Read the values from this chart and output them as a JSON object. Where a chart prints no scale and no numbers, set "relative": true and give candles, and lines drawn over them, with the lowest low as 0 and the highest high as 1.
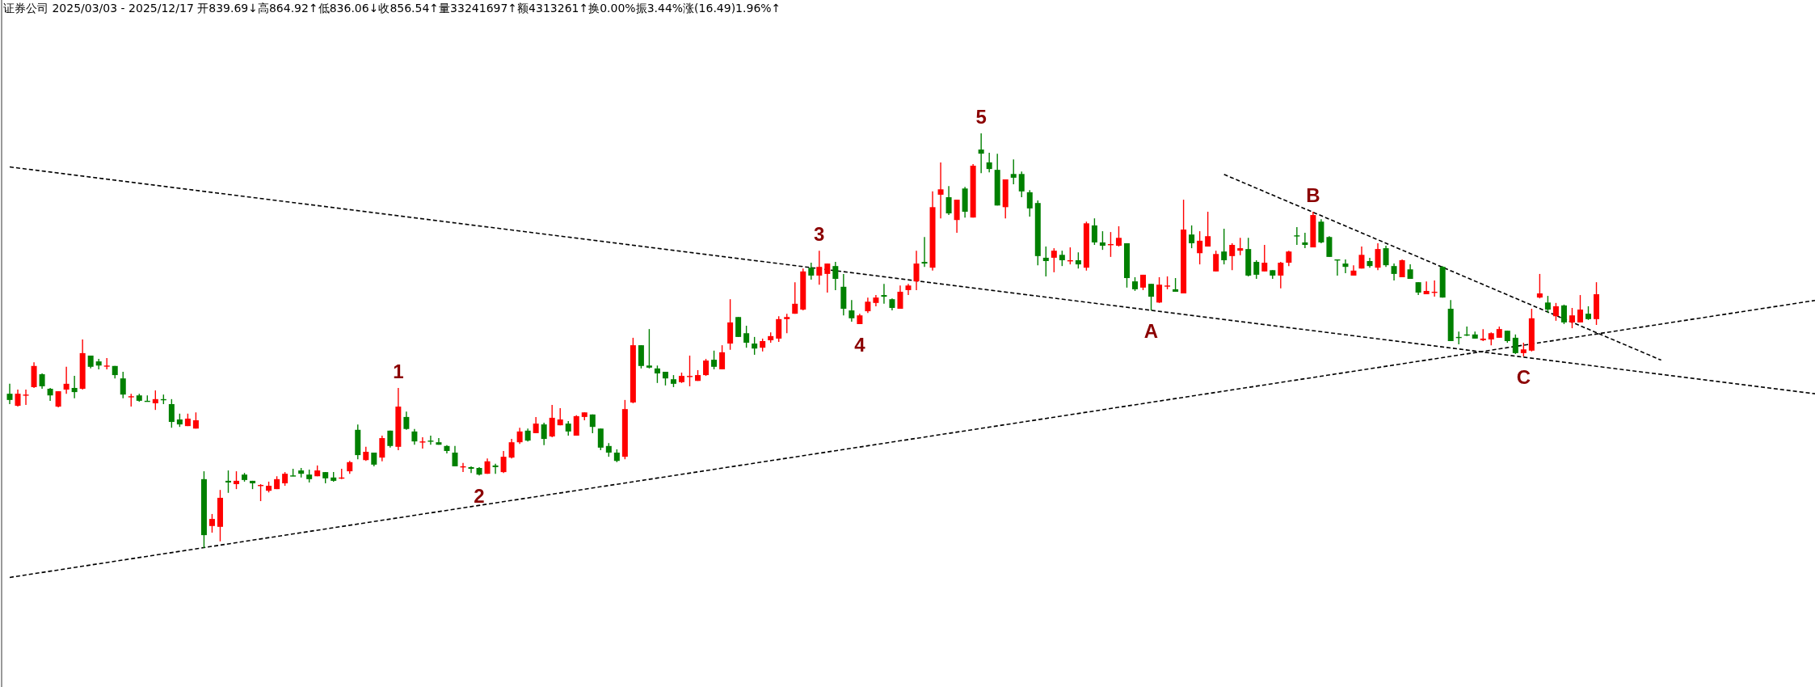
{
  "chart_data": {
    "type": "candlestick",
    "title": "证券公司 2025/03/03 - 2025/12/17 开839.69↓高864.92↑低836.06↓收856.54↑量33241697↑额4313261↑换0.00%振3.44%涨(16.49)1.96%↑",
    "relative": true,
    "categories": [
      null,
      null,
      null,
      null,
      null,
      null,
      null,
      null,
      null,
      null,
      null,
      null,
      null,
      null,
      null,
      null,
      null,
      null,
      null,
      null,
      null,
      null,
      null,
      null,
      null,
      null,
      null,
      null,
      null,
      null,
      null,
      null,
      null,
      null,
      null,
      null,
      null,
      null,
      null,
      null,
      null,
      null,
      null,
      null,
      null,
      null,
      null,
      null,
      null,
      null,
      null,
      null,
      null,
      null,
      null,
      null,
      null,
      null,
      null,
      null,
      null,
      null,
      null,
      null,
      null,
      null,
      null,
      null,
      null,
      null,
      null,
      null,
      null,
      null,
      null,
      null,
      null,
      null,
      null,
      null,
      null,
      null,
      null,
      null,
      null,
      null,
      null,
      null,
      null,
      null,
      null,
      null,
      null,
      null,
      null,
      null,
      null,
      null,
      null,
      null,
      null,
      null,
      null,
      null,
      null,
      null,
      null,
      null,
      null,
      null,
      null,
      null,
      null,
      null,
      null,
      null,
      null,
      null,
      null,
      null,
      null,
      null,
      null,
      null,
      null,
      null,
      null,
      null,
      null,
      null,
      null,
      null,
      null,
      null,
      null,
      null,
      null,
      null,
      null,
      null,
      null,
      null,
      null,
      null,
      null,
      null,
      null,
      null,
      null,
      null,
      null,
      null,
      null,
      null,
      null,
      null,
      null,
      null,
      null,
      null,
      null,
      null,
      null,
      null,
      null,
      null,
      null,
      null,
      null,
      null,
      null,
      null,
      null,
      null,
      null,
      null,
      null,
      null,
      null,
      null,
      null,
      null,
      null,
      null,
      null,
      null,
      null,
      null,
      null,
      null,
      null,
      null,
      null,
      null,
      null,
      null,
      null,
      null,
      null,
      null,
      null,
      null,
      null,
      null,
      null,
      null,
      null,
      null,
      null,
      null,
      null,
      null,
      null,
      null,
      null,
      null,
      null,
      null,
      null,
      null,
      null,
      null,
      null,
      null
    ],
    "ohlc": [
      [
        0.372,
        0.396,
        0.347,
        0.357
      ],
      [
        0.343,
        0.382,
        0.341,
        0.372
      ],
      [
        0.368,
        0.382,
        0.345,
        0.37
      ],
      [
        0.388,
        0.448,
        0.386,
        0.439
      ],
      [
        0.419,
        0.421,
        0.384,
        0.39
      ],
      [
        0.384,
        0.386,
        0.355,
        0.368
      ],
      [
        0.341,
        0.378,
        0.339,
        0.378
      ],
      [
        0.382,
        0.437,
        0.372,
        0.396
      ],
      [
        0.386,
        0.415,
        0.361,
        0.376
      ],
      [
        0.384,
        0.503,
        0.382,
        0.47
      ],
      [
        0.464,
        0.464,
        0.433,
        0.437
      ],
      [
        0.45,
        0.456,
        0.431,
        0.44
      ],
      [
        0.439,
        0.458,
        0.431,
        0.44
      ],
      [
        0.439,
        0.439,
        0.409,
        0.417
      ],
      [
        0.409,
        0.425,
        0.361,
        0.37
      ],
      [
        0.364,
        0.372,
        0.341,
        0.366
      ],
      [
        0.368,
        0.372,
        0.353,
        0.355
      ],
      [
        0.355,
        0.368,
        0.353,
        0.353
      ],
      [
        0.349,
        0.38,
        0.333,
        0.359
      ],
      [
        0.359,
        0.37,
        0.347,
        0.357
      ],
      [
        0.347,
        0.359,
        0.29,
        0.304
      ],
      [
        0.31,
        0.324,
        0.292,
        0.298
      ],
      [
        0.294,
        0.324,
        0.294,
        0.312
      ],
      [
        0.288,
        0.327,
        0.288,
        0.308
      ],
      [
        0.166,
        0.185,
        0,
        0.031
      ],
      [
        0.053,
        0.082,
        0.037,
        0.07
      ],
      [
        0.051,
        0.14,
        0.016,
        0.121
      ],
      [
        0.162,
        0.187,
        0.133,
        0.158
      ],
      [
        0.154,
        0.185,
        0.142,
        0.162
      ],
      [
        0.177,
        0.181,
        0.16,
        0.164
      ],
      [
        0.162,
        0.162,
        0.142,
        0.156
      ],
      [
        0.15,
        0.154,
        0.113,
        0.152
      ],
      [
        0.138,
        0.16,
        0.134,
        0.15
      ],
      [
        0.142,
        0.173,
        0.142,
        0.166
      ],
      [
        0.156,
        0.183,
        0.15,
        0.179
      ],
      [
        0.175,
        0.191,
        0.173,
        0.173
      ],
      [
        0.187,
        0.193,
        0.17,
        0.179
      ],
      [
        0.177,
        0.189,
        0.158,
        0.166
      ],
      [
        0.173,
        0.199,
        0.173,
        0.187
      ],
      [
        0.183,
        0.183,
        0.156,
        0.168
      ],
      [
        0.17,
        0.183,
        0.16,
        0.162
      ],
      [
        0.168,
        0.191,
        0.166,
        0.17
      ],
      [
        0.185,
        0.21,
        0.179,
        0.207
      ],
      [
        0.285,
        0.298,
        0.214,
        0.224
      ],
      [
        0.212,
        0.244,
        0.21,
        0.232
      ],
      [
        0.23,
        0.23,
        0.197,
        0.201
      ],
      [
        0.218,
        0.271,
        0.209,
        0.265
      ],
      [
        0.283,
        0.283,
        0.242,
        0.246
      ],
      [
        0.244,
        0.386,
        0.236,
        0.341
      ],
      [
        0.316,
        0.329,
        0.285,
        0.287
      ],
      [
        0.281,
        0.287,
        0.249,
        0.257
      ],
      [
        0.255,
        0.267,
        0.24,
        0.257
      ],
      [
        0.259,
        0.271,
        0.249,
        0.257
      ],
      [
        0.255,
        0.265,
        0.249,
        0.249
      ],
      [
        0.246,
        0.248,
        0.228,
        0.234
      ],
      [
        0.23,
        0.246,
        0.197,
        0.197
      ],
      [
        0.195,
        0.205,
        0.183,
        0.197
      ],
      [
        0.195,
        0.197,
        0.181,
        0.191
      ],
      [
        0.193,
        0.195,
        0.175,
        0.177
      ],
      [
        0.179,
        0.216,
        0.179,
        0.209
      ],
      [
        0.199,
        0.203,
        0.179,
        0.195
      ],
      [
        0.183,
        0.234,
        0.181,
        0.22
      ],
      [
        0.218,
        0.263,
        0.216,
        0.255
      ],
      [
        0.255,
        0.29,
        0.251,
        0.281
      ],
      [
        0.283,
        0.288,
        0.257,
        0.259
      ],
      [
        0.277,
        0.316,
        0.277,
        0.3
      ],
      [
        0.298,
        0.302,
        0.248,
        0.263
      ],
      [
        0.269,
        0.345,
        0.267,
        0.314
      ],
      [
        0.296,
        0.337,
        0.296,
        0.31
      ],
      [
        0.3,
        0.306,
        0.271,
        0.281
      ],
      [
        0.271,
        0.32,
        0.271,
        0.318
      ],
      [
        0.316,
        0.327,
        0.308,
        0.327
      ],
      [
        0.322,
        0.322,
        0.277,
        0.292
      ],
      [
        0.288,
        0.288,
        0.236,
        0.242
      ],
      [
        0.246,
        0.253,
        0.22,
        0.23
      ],
      [
        0.23,
        0.238,
        0.207,
        0.21
      ],
      [
        0.22,
        0.357,
        0.214,
        0.335
      ],
      [
        0.351,
        0.507,
        0.349,
        0.489
      ],
      [
        0.489,
        0.489,
        0.433,
        0.439
      ],
      [
        0.44,
        0.528,
        0.433,
        0.435
      ],
      [
        0.433,
        0.44,
        0.398,
        0.421
      ],
      [
        0.425,
        0.425,
        0.392,
        0.409
      ],
      [
        0.407,
        0.417,
        0.388,
        0.396
      ],
      [
        0.4,
        0.423,
        0.398,
        0.415
      ],
      [
        0.413,
        0.464,
        0.39,
        0.415
      ],
      [
        0.403,
        0.429,
        0.403,
        0.417
      ],
      [
        0.417,
        0.456,
        0.415,
        0.452
      ],
      [
        0.454,
        0.476,
        0.431,
        0.437
      ],
      [
        0.431,
        0.489,
        0.431,
        0.472
      ],
      [
        0.493,
        0.6,
        0.478,
        0.544
      ],
      [
        0.557,
        0.557,
        0.509,
        0.509
      ],
      [
        0.518,
        0.536,
        0.483,
        0.495
      ],
      [
        0.493,
        0.509,
        0.466,
        0.481
      ],
      [
        0.483,
        0.505,
        0.474,
        0.499
      ],
      [
        0.501,
        0.52,
        0.495,
        0.511
      ],
      [
        0.505,
        0.559,
        0.497,
        0.552
      ],
      [
        0.552,
        0.565,
        0.518,
        0.557
      ],
      [
        0.565,
        0.641,
        0.565,
        0.589
      ],
      [
        0.575,
        0.674,
        0.573,
        0.667
      ],
      [
        0.676,
        0.688,
        0.647,
        0.657
      ],
      [
        0.657,
        0.717,
        0.635,
        0.678
      ],
      [
        0.661,
        0.686,
        0.616,
        0.686
      ],
      [
        0.68,
        0.69,
        0.622,
        0.649
      ],
      [
        0.63,
        0.661,
        0.561,
        0.577
      ],
      [
        0.573,
        0.598,
        0.546,
        0.554
      ],
      [
        0.54,
        0.565,
        0.54,
        0.561
      ],
      [
        0.571,
        0.604,
        0.567,
        0.594
      ],
      [
        0.591,
        0.61,
        0.583,
        0.604
      ],
      [
        0.61,
        0.637,
        0.589,
        0.606
      ],
      [
        0.6,
        0.602,
        0.573,
        0.579
      ],
      [
        0.577,
        0.633,
        0.577,
        0.618
      ],
      [
        0.622,
        0.637,
        0.61,
        0.633
      ],
      [
        0.643,
        0.717,
        0.622,
        0.686
      ],
      [
        0.69,
        0.75,
        0.678,
        0.686
      ],
      [
        0.676,
        0.86,
        0.669,
        0.822
      ],
      [
        0.852,
        0.93,
        0.795,
        0.865
      ],
      [
        0.846,
        0.873,
        0.803,
        0.807
      ],
      [
        0.791,
        0.84,
        0.76,
        0.84
      ],
      [
        0.867,
        0.871,
        0.797,
        0.811
      ],
      [
        0.797,
        0.926,
        0.797,
        0.922
      ],
      [
        0.961,
        1.0,
        0.904,
        0.951
      ],
      [
        0.93,
        0.953,
        0.906,
        0.914
      ],
      [
        0.912,
        0.951,
        0.826,
        0.826
      ],
      [
        0.822,
        0.889,
        0.795,
        0.889
      ],
      [
        0.902,
        0.937,
        0.877,
        0.893
      ],
      [
        0.902,
        0.908,
        0.846,
        0.86
      ],
      [
        0.858,
        0.863,
        0.799,
        0.819
      ],
      [
        0.832,
        0.838,
        0.682,
        0.704
      ],
      [
        0.7,
        0.727,
        0.655,
        0.692
      ],
      [
        0.7,
        0.723,
        0.665,
        0.717
      ],
      [
        0.707,
        0.717,
        0.68,
        0.694
      ],
      [
        0.692,
        0.725,
        0.684,
        0.694
      ],
      [
        0.694,
        0.713,
        0.674,
        0.684
      ],
      [
        0.676,
        0.787,
        0.669,
        0.783
      ],
      [
        0.778,
        0.795,
        0.731,
        0.737
      ],
      [
        0.737,
        0.764,
        0.719,
        0.729
      ],
      [
        0.731,
        0.762,
        0.702,
        0.733
      ],
      [
        0.729,
        0.776,
        0.727,
        0.748
      ],
      [
        0.735,
        0.735,
        0.628,
        0.651
      ],
      [
        0.643,
        0.653,
        0.62,
        0.624
      ],
      [
        0.628,
        0.659,
        0.622,
        0.659
      ],
      [
        0.637,
        0.637,
        0.573,
        0.606
      ],
      [
        0.592,
        0.653,
        0.591,
        0.635
      ],
      [
        0.631,
        0.655,
        0.624,
        0.633
      ],
      [
        0.624,
        0.651,
        0.618,
        0.618
      ],
      [
        0.614,
        0.84,
        0.614,
        0.768
      ],
      [
        0.756,
        0.778,
        0.723,
        0.735
      ],
      [
        0.711,
        0.764,
        0.684,
        0.741
      ],
      [
        0.727,
        0.811,
        0.727,
        0.752
      ],
      [
        0.667,
        0.717,
        0.667,
        0.709
      ],
      [
        0.715,
        0.77,
        0.684,
        0.694
      ],
      [
        0.704,
        0.735,
        0.67,
        0.731
      ],
      [
        0.717,
        0.748,
        0.706,
        0.723
      ],
      [
        0.721,
        0.748,
        0.655,
        0.657
      ],
      [
        0.69,
        0.694,
        0.649,
        0.659
      ],
      [
        0.667,
        0.731,
        0.667,
        0.688
      ],
      [
        0.67,
        0.67,
        0.649,
        0.657
      ],
      [
        0.657,
        0.69,
        0.626,
        0.688
      ],
      [
        0.688,
        0.717,
        0.68,
        0.715
      ],
      [
        0.754,
        0.774,
        0.731,
        0.752
      ],
      [
        0.737,
        0.76,
        0.723,
        0.731
      ],
      [
        0.725,
        0.811,
        0.725,
        0.803
      ],
      [
        0.787,
        0.793,
        0.735,
        0.737
      ],
      [
        0.75,
        0.752,
        0.702,
        0.702
      ],
      [
        0.696,
        0.696,
        0.657,
        0.694
      ],
      [
        0.686,
        0.696,
        0.663,
        0.678
      ],
      [
        0.657,
        0.682,
        0.657,
        0.669
      ],
      [
        0.674,
        0.727,
        0.674,
        0.707
      ],
      [
        0.692,
        0.7,
        0.676,
        0.68
      ],
      [
        0.676,
        0.735,
        0.67,
        0.721
      ],
      [
        0.723,
        0.729,
        0.678,
        0.682
      ],
      [
        0.68,
        0.686,
        0.645,
        0.661
      ],
      [
        0.653,
        0.696,
        0.653,
        0.694
      ],
      [
        0.672,
        0.684,
        0.649,
        0.649
      ],
      [
        0.641,
        0.641,
        0.61,
        0.616
      ],
      [
        0.612,
        0.643,
        0.612,
        0.62
      ],
      [
        0.616,
        0.645,
        0.606,
        0.618
      ],
      [
        0.678,
        0.68,
        0.604,
        0.604
      ],
      [
        0.577,
        0.598,
        0.499,
        0.499
      ],
      [
        0.509,
        0.522,
        0.491,
        0.507
      ],
      [
        0.515,
        0.534,
        0.511,
        0.513
      ],
      [
        0.515,
        0.522,
        0.505,
        0.505
      ],
      [
        0.501,
        0.528,
        0.499,
        0.505
      ],
      [
        0.503,
        0.52,
        0.489,
        0.518
      ],
      [
        0.507,
        0.534,
        0.507,
        0.528
      ],
      [
        0.524,
        0.524,
        0.495,
        0.499
      ],
      [
        0.507,
        0.515,
        0.468,
        0.47
      ],
      [
        0.47,
        0.495,
        0.462,
        0.479
      ],
      [
        0.476,
        0.577,
        0.474,
        0.554
      ],
      [
        0.604,
        0.661,
        0.602,
        0.614
      ],
      [
        0.592,
        0.608,
        0.567,
        0.575
      ],
      [
        0.559,
        0.591,
        0.548,
        0.583
      ],
      [
        0.585,
        0.587,
        0.54,
        0.544
      ],
      [
        0.544,
        0.579,
        0.53,
        0.561
      ],
      [
        0.544,
        0.61,
        0.544,
        0.575
      ],
      [
        0.565,
        0.583,
        0.55,
        0.552
      ],
      [
        0.552,
        0.641,
        0.538,
        0.612
      ],
      null,
      null,
      null,
      null,
      null,
      null,
      null,
      null,
      null,
      null,
      null,
      null,
      null,
      null,
      null,
      null,
      null,
      null,
      null,
      null,
      null,
      null,
      null,
      null,
      null,
      null,
      null
    ],
    "series": [
      {
        "type": "line",
        "color": "#000000",
        "line_style": "dashed",
        "values": [
          0.919,
          null,
          null,
          null,
          null,
          null,
          null,
          null,
          null,
          null,
          null,
          null,
          null,
          null,
          null,
          null,
          null,
          null,
          null,
          null,
          null,
          null,
          null,
          null,
          null,
          null,
          null,
          null,
          null,
          null,
          null,
          null,
          null,
          null,
          null,
          null,
          null,
          null,
          null,
          null,
          null,
          null,
          null,
          null,
          null,
          null,
          null,
          null,
          null,
          null,
          null,
          null,
          null,
          null,
          null,
          null,
          null,
          null,
          null,
          null,
          null,
          null,
          null,
          null,
          null,
          null,
          null,
          null,
          null,
          null,
          null,
          null,
          null,
          null,
          null,
          null,
          null,
          null,
          null,
          null,
          null,
          null,
          null,
          null,
          null,
          null,
          null,
          null,
          null,
          null,
          null,
          null,
          null,
          null,
          null,
          null,
          null,
          null,
          null,
          null,
          null,
          null,
          null,
          null,
          null,
          null,
          null,
          null,
          null,
          null,
          null,
          null,
          null,
          null,
          null,
          null,
          null,
          null,
          null,
          null,
          null,
          null,
          null,
          null,
          null,
          null,
          null,
          null,
          null,
          null,
          null,
          null,
          null,
          null,
          null,
          null,
          null,
          null,
          null,
          null,
          null,
          null,
          null,
          null,
          null,
          null,
          null,
          null,
          null,
          null,
          null,
          null,
          null,
          null,
          null,
          null,
          null,
          null,
          null,
          null,
          null,
          null,
          null,
          null,
          null,
          null,
          null,
          null,
          null,
          null,
          null,
          null,
          null,
          null,
          null,
          null,
          null,
          null,
          null,
          null,
          null,
          null,
          null,
          null,
          null,
          null,
          null,
          null,
          null,
          null,
          null,
          null,
          null,
          null,
          null,
          null,
          null,
          null,
          null,
          null,
          null,
          null,
          null,
          null,
          null,
          null,
          null,
          null,
          null,
          null,
          null,
          null,
          null,
          null,
          null,
          null,
          null,
          null,
          null,
          null,
          null,
          null,
          null,
          0.372
        ]
      },
      {
        "type": "line",
        "color": "#000000",
        "line_style": "dashed",
        "values": [
          -0.071,
          null,
          null,
          null,
          null,
          null,
          null,
          null,
          null,
          null,
          null,
          null,
          null,
          null,
          null,
          null,
          null,
          null,
          null,
          null,
          null,
          null,
          null,
          null,
          null,
          null,
          null,
          null,
          null,
          null,
          null,
          null,
          null,
          null,
          null,
          null,
          null,
          null,
          null,
          null,
          null,
          null,
          null,
          null,
          null,
          null,
          null,
          null,
          null,
          null,
          null,
          null,
          null,
          null,
          null,
          null,
          null,
          null,
          null,
          null,
          null,
          null,
          null,
          null,
          null,
          null,
          null,
          null,
          null,
          null,
          null,
          null,
          null,
          null,
          null,
          null,
          null,
          null,
          null,
          null,
          null,
          null,
          null,
          null,
          null,
          null,
          null,
          null,
          null,
          null,
          null,
          null,
          null,
          null,
          null,
          null,
          null,
          null,
          null,
          null,
          null,
          null,
          null,
          null,
          null,
          null,
          null,
          null,
          null,
          null,
          null,
          null,
          null,
          null,
          null,
          null,
          null,
          null,
          null,
          null,
          null,
          null,
          null,
          null,
          null,
          null,
          null,
          null,
          null,
          null,
          null,
          null,
          null,
          null,
          null,
          null,
          null,
          null,
          null,
          null,
          null,
          null,
          null,
          null,
          null,
          null,
          null,
          null,
          null,
          null,
          null,
          null,
          null,
          null,
          null,
          null,
          null,
          null,
          null,
          null,
          null,
          null,
          null,
          null,
          null,
          null,
          null,
          null,
          null,
          null,
          null,
          null,
          null,
          null,
          null,
          null,
          null,
          null,
          null,
          null,
          null,
          null,
          null,
          null,
          null,
          null,
          null,
          null,
          null,
          null,
          null,
          null,
          null,
          null,
          null,
          null,
          null,
          null,
          null,
          null,
          null,
          null,
          null,
          null,
          null,
          null,
          null,
          null,
          null,
          null,
          null,
          null,
          null,
          null,
          null,
          null,
          null,
          null,
          null,
          null,
          null,
          null,
          null,
          0.597
        ]
      },
      {
        "type": "line",
        "color": "#000000",
        "line_style": "dashed",
        "values": [
          null,
          null,
          null,
          null,
          null,
          null,
          null,
          null,
          null,
          null,
          null,
          null,
          null,
          null,
          null,
          null,
          null,
          null,
          null,
          null,
          null,
          null,
          null,
          null,
          null,
          null,
          null,
          null,
          null,
          null,
          null,
          null,
          null,
          null,
          null,
          null,
          null,
          null,
          null,
          null,
          null,
          null,
          null,
          null,
          null,
          null,
          null,
          null,
          null,
          null,
          null,
          null,
          null,
          null,
          null,
          null,
          null,
          null,
          null,
          null,
          null,
          null,
          null,
          null,
          null,
          null,
          null,
          null,
          null,
          null,
          null,
          null,
          null,
          null,
          null,
          null,
          null,
          null,
          null,
          null,
          null,
          null,
          null,
          null,
          null,
          null,
          null,
          null,
          null,
          null,
          null,
          null,
          null,
          null,
          null,
          null,
          null,
          null,
          null,
          null,
          null,
          null,
          null,
          null,
          null,
          null,
          null,
          null,
          null,
          null,
          null,
          null,
          null,
          null,
          null,
          null,
          null,
          null,
          null,
          null,
          null,
          null,
          null,
          null,
          null,
          null,
          null,
          null,
          null,
          null,
          null,
          null,
          null,
          null,
          null,
          null,
          null,
          null,
          null,
          null,
          null,
          null,
          null,
          null,
          null,
          null,
          null,
          null,
          null,
          null,
          0.901,
          null,
          null,
          null,
          null,
          null,
          null,
          null,
          null,
          null,
          null,
          null,
          null,
          null,
          null,
          null,
          null,
          null,
          null,
          null,
          null,
          null,
          null,
          null,
          null,
          null,
          null,
          null,
          null,
          null,
          null,
          null,
          null,
          null,
          null,
          null,
          null,
          null,
          null,
          null,
          null,
          null,
          null,
          null,
          null,
          null,
          null,
          null,
          null,
          null,
          null,
          null,
          null,
          null,
          0.453,
          null,
          null,
          null,
          null,
          null,
          null,
          null,
          null,
          null,
          null,
          null,
          null,
          null,
          null,
          null,
          null,
          null,
          null,
          null
        ]
      }
    ],
    "annotations": [
      {
        "text": "1",
        "y": 0.386
      },
      {
        "text": "2",
        "y": 0.175
      },
      {
        "text": "3",
        "y": 0.717
      },
      {
        "text": "4",
        "y": 0.54
      },
      {
        "text": "5",
        "y": 1.0
      },
      {
        "text": "A",
        "y": 0.573
      },
      {
        "text": "B",
        "y": 0.811
      },
      {
        "text": "C",
        "y": 0.462
      }
    ]
  }
}
